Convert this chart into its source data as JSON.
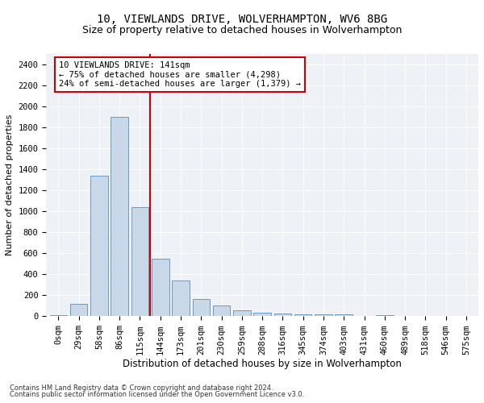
{
  "title1": "10, VIEWLANDS DRIVE, WOLVERHAMPTON, WV6 8BG",
  "title2": "Size of property relative to detached houses in Wolverhampton",
  "xlabel": "Distribution of detached houses by size in Wolverhampton",
  "ylabel": "Number of detached properties",
  "footnote1": "Contains HM Land Registry data © Crown copyright and database right 2024.",
  "footnote2": "Contains public sector information licensed under the Open Government Licence v3.0.",
  "annotation_line1": "10 VIEWLANDS DRIVE: 141sqm",
  "annotation_line2": "← 75% of detached houses are smaller (4,298)",
  "annotation_line3": "24% of semi-detached houses are larger (1,379) →",
  "bar_color": "#c8d8e8",
  "bar_edge_color": "#5b8db8",
  "vline_color": "#cc0000",
  "vline_x_index": 5,
  "categories": [
    "0sqm",
    "29sqm",
    "58sqm",
    "86sqm",
    "115sqm",
    "144sqm",
    "173sqm",
    "201sqm",
    "230sqm",
    "259sqm",
    "288sqm",
    "316sqm",
    "345sqm",
    "374sqm",
    "403sqm",
    "431sqm",
    "460sqm",
    "489sqm",
    "518sqm",
    "546sqm",
    "575sqm"
  ],
  "values": [
    10,
    120,
    1340,
    1900,
    1040,
    550,
    340,
    165,
    105,
    55,
    30,
    25,
    20,
    15,
    15,
    5,
    10,
    0,
    0,
    0,
    5
  ],
  "ylim": [
    0,
    2500
  ],
  "yticks": [
    0,
    200,
    400,
    600,
    800,
    1000,
    1200,
    1400,
    1600,
    1800,
    2000,
    2200,
    2400
  ],
  "background_color": "#eef2f7",
  "grid_color": "#ffffff",
  "title1_fontsize": 10,
  "title2_fontsize": 9,
  "xlabel_fontsize": 8.5,
  "ylabel_fontsize": 8,
  "tick_fontsize": 7.5,
  "annot_fontsize": 7.5,
  "footnote_fontsize": 6
}
